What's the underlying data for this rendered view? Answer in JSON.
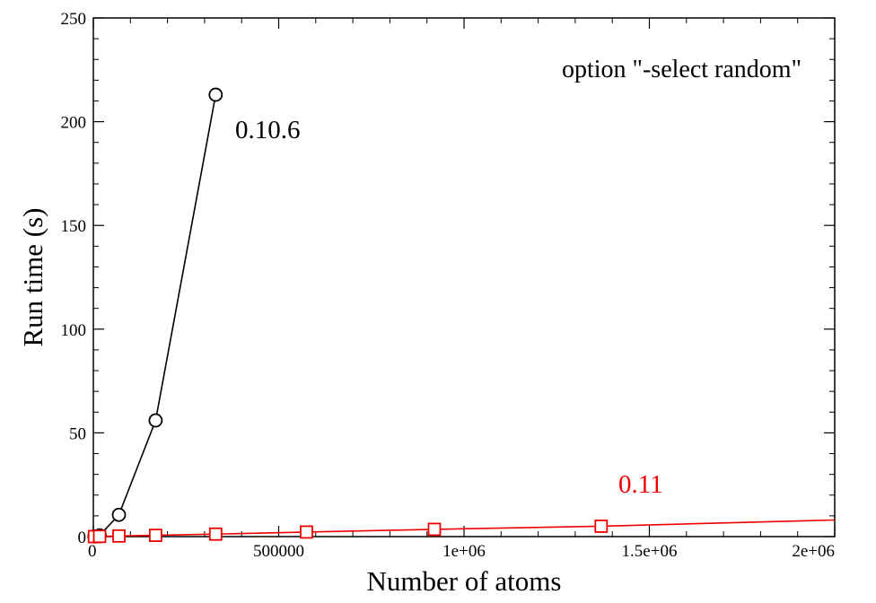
{
  "chart_data": {
    "type": "line",
    "xlabel": "Number of atoms",
    "ylabel": "Run time (s)",
    "xlim": [
      0,
      2000000
    ],
    "ylim": [
      0,
      250
    ],
    "x_ticks": [
      {
        "value": 0,
        "label": "0"
      },
      {
        "value": 500000,
        "label": "500000"
      },
      {
        "value": 1000000,
        "label": "1e+06"
      },
      {
        "value": 1500000,
        "label": "1.5e+06"
      },
      {
        "value": 2000000,
        "label": "2e+06"
      }
    ],
    "y_ticks": [
      {
        "value": 0,
        "label": "0"
      },
      {
        "value": 50,
        "label": "50"
      },
      {
        "value": 100,
        "label": "100"
      },
      {
        "value": 150,
        "label": "150"
      },
      {
        "value": 200,
        "label": "200"
      },
      {
        "value": 250,
        "label": "250"
      }
    ],
    "annotation": "option \"-select random\"",
    "series": [
      {
        "label": "0.10.6",
        "color": "#000000",
        "marker": "circle",
        "x": [
          3000,
          17000,
          69000,
          168000,
          330000
        ],
        "y": [
          0.1,
          0.6,
          10.5,
          56,
          213
        ]
      },
      {
        "label": "0.11",
        "color": "#ee0000",
        "marker": "square",
        "x": [
          3000,
          17000,
          69000,
          168000,
          330000,
          575000,
          920000,
          1370000,
          2000000
        ],
        "y": [
          0.0,
          0.1,
          0.3,
          0.6,
          1.2,
          2.2,
          3.5,
          5.0,
          8.0
        ],
        "markers_shown": [
          true,
          true,
          true,
          true,
          true,
          true,
          true,
          true,
          false
        ]
      }
    ]
  }
}
